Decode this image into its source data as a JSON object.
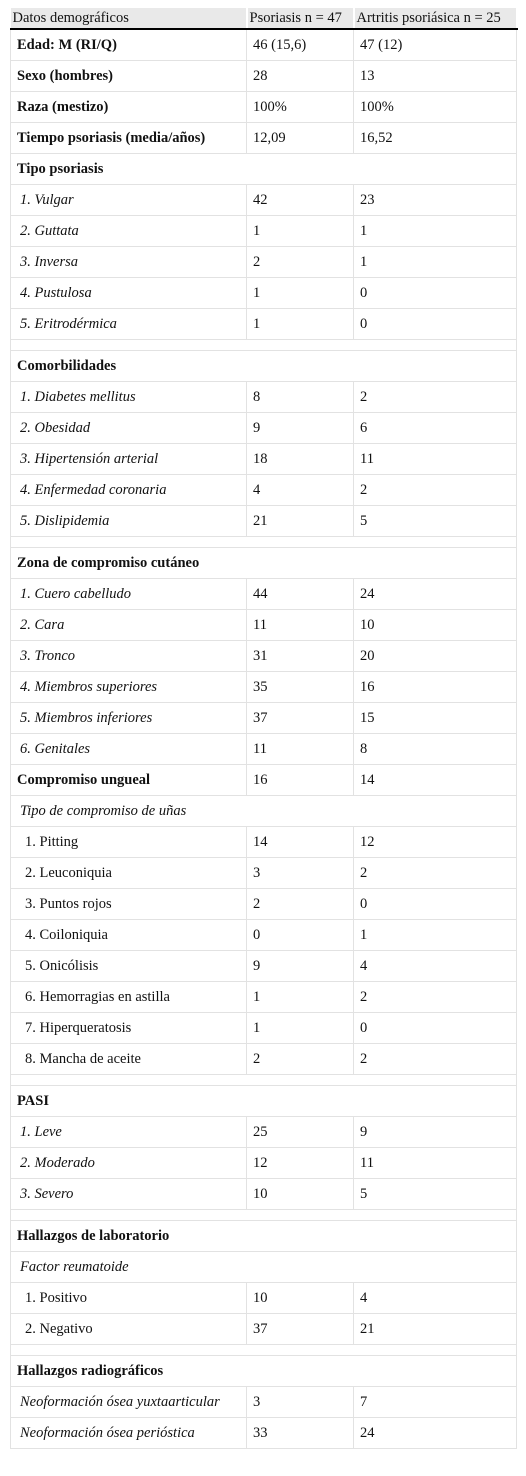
{
  "table": {
    "header": [
      "Datos demográficos",
      "Psoriasis n = 47",
      "Artritis psoriásica n = 25"
    ],
    "rows": [
      [
        "Edad: M (RI/Q)",
        "46 (15,6)",
        "47 (12)"
      ],
      [
        "Sexo (hombres)",
        28,
        13
      ],
      [
        "Raza (mestizo)",
        "100%",
        "100%"
      ],
      [
        "Tiempo psoriasis (media/años)",
        "12,09",
        "16,52"
      ],
      [
        "Tipo psoriasis"
      ],
      [
        "1. Vulgar",
        42,
        23
      ],
      [
        "2. Guttata",
        1,
        1
      ],
      [
        "3. Inversa",
        2,
        1
      ],
      [
        "4. Pustulosa",
        1,
        0
      ],
      [
        "5. Eritrodérmica",
        1,
        0
      ],
      [
        "Comorbilidades"
      ],
      [
        "1. Diabetes mellitus",
        8,
        2
      ],
      [
        "2. Obesidad",
        9,
        6
      ],
      [
        "3. Hipertensión arterial",
        18,
        11
      ],
      [
        "4. Enfermedad coronaria",
        4,
        2
      ],
      [
        "5. Dislipidemia",
        21,
        5
      ],
      [
        "Zona de compromiso cutáneo"
      ],
      [
        "1. Cuero cabelludo",
        44,
        24
      ],
      [
        "2. Cara",
        11,
        10
      ],
      [
        "3. Tronco",
        31,
        20
      ],
      [
        "4. Miembros superiores",
        35,
        16
      ],
      [
        "5. Miembros inferiores",
        37,
        15
      ],
      [
        "6. Genitales",
        11,
        8
      ],
      [
        "Compromiso ungueal",
        16,
        14
      ],
      [
        "Tipo de compromiso de uñas"
      ],
      [
        "1. Pitting",
        14,
        12
      ],
      [
        "2. Leuconiquia",
        3,
        2
      ],
      [
        "3. Puntos rojos",
        2,
        0
      ],
      [
        "4. Coiloniquia",
        0,
        1
      ],
      [
        "5. Onicólisis",
        9,
        4
      ],
      [
        "6. Hemorragias en astilla",
        1,
        2
      ],
      [
        "7. Hiperqueratosis",
        1,
        0
      ],
      [
        "8. Mancha de aceite",
        2,
        2
      ],
      [
        "PASI"
      ],
      [
        "1. Leve",
        25,
        9
      ],
      [
        "2. Moderado",
        12,
        11
      ],
      [
        "3. Severo",
        10,
        5
      ],
      [
        "Hallazgos de laboratorio"
      ],
      [
        "Factor reumatoide"
      ],
      [
        "1. Positivo",
        10,
        4
      ],
      [
        "2. Negativo",
        37,
        21
      ],
      [
        "Hallazgos radiográficos"
      ],
      [
        "Neoformación ósea yuxtaarticular",
        3,
        7
      ],
      [
        "Neoformación ósea perióstica",
        33,
        24
      ]
    ]
  }
}
